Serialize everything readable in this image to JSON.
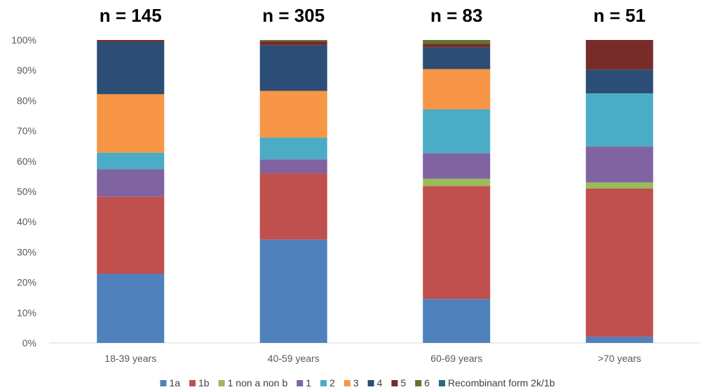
{
  "chart_data": {
    "type": "bar",
    "stacked": true,
    "categories": [
      "18-39 years",
      "40-59 years",
      "60-69 years",
      ">70 years"
    ],
    "group_labels": [
      "n = 145",
      "n = 305",
      "n = 83",
      "n = 51"
    ],
    "ylim": [
      0,
      100
    ],
    "yticks": [
      "0%",
      "10%",
      "20%",
      "30%",
      "40%",
      "50%",
      "60%",
      "70%",
      "80%",
      "90%",
      "100%"
    ],
    "legend_position": "bottom",
    "grid": false,
    "series": [
      {
        "name": "1a",
        "color": "#4F81BD",
        "values": [
          22.8,
          34.1,
          14.5,
          2.0
        ]
      },
      {
        "name": "1b",
        "color": "#C0504D",
        "values": [
          25.5,
          21.9,
          37.3,
          49.0
        ]
      },
      {
        "name": "1 non a non b",
        "color": "#9BBB59",
        "values": [
          0.0,
          0.0,
          2.4,
          2.0
        ]
      },
      {
        "name": "1",
        "color": "#8064A2",
        "values": [
          9.0,
          4.6,
          8.4,
          11.8
        ]
      },
      {
        "name": "2",
        "color": "#4BACC6",
        "values": [
          5.5,
          7.2,
          14.5,
          17.6
        ]
      },
      {
        "name": "3",
        "color": "#F79646",
        "values": [
          19.3,
          15.4,
          13.3,
          0.0
        ]
      },
      {
        "name": "4",
        "color": "#2C4D75",
        "values": [
          17.3,
          15.1,
          7.2,
          7.8
        ]
      },
      {
        "name": "5",
        "color": "#772C2A",
        "values": [
          0.6,
          1.3,
          1.2,
          9.8
        ]
      },
      {
        "name": "6",
        "color": "#5F7530",
        "values": [
          0.0,
          0.4,
          1.2,
          0.0
        ]
      },
      {
        "name": "Recombinant form 2k/1b",
        "color": "#276A7C",
        "values": [
          0.0,
          0.0,
          0.0,
          0.0
        ]
      }
    ]
  }
}
